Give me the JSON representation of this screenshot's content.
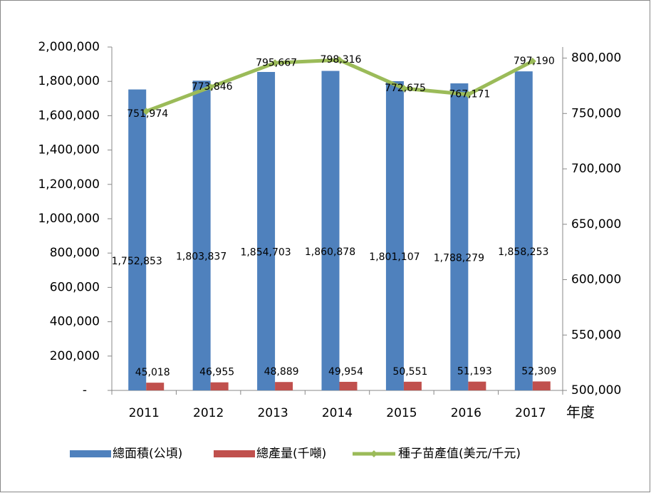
{
  "chart_data": {
    "type": "bar",
    "x_label": "年度",
    "categories": [
      "2011",
      "2012",
      "2013",
      "2014",
      "2015",
      "2016",
      "2017"
    ],
    "series": [
      {
        "name": "總面積(公頃)",
        "type": "bar",
        "color": "#4f81bd",
        "values": [
          1752853,
          1803837,
          1854703,
          1860878,
          1801107,
          1788279,
          1858253
        ],
        "value_labels": [
          "1,752,853",
          "1,803,837",
          "1,854,703",
          "1,860,878",
          "1,801,107",
          "1,788,279",
          "1,858,253"
        ]
      },
      {
        "name": "總產量(千噸)",
        "type": "bar",
        "color": "#c0504d",
        "values": [
          45018,
          46955,
          48889,
          49954,
          50551,
          51193,
          52309
        ],
        "value_labels": [
          "45,018",
          "46,955",
          "48,889",
          "49,954",
          "50,551",
          "51,193",
          "52,309"
        ]
      },
      {
        "name": "種子苗產值(美元/千元)",
        "type": "line",
        "axis": "y2",
        "color": "#9bbb59",
        "values": [
          751974,
          773846,
          795667,
          798316,
          772675,
          767171,
          797190
        ],
        "value_labels": [
          "751,974",
          "773,846",
          "795,667",
          "798,316",
          "772,675",
          "767,171",
          "797,190"
        ]
      }
    ],
    "ylim": [
      0,
      2000000
    ],
    "yticks": [
      {
        "value": 0,
        "label": "-"
      },
      {
        "value": 200000,
        "label": "200,000"
      },
      {
        "value": 400000,
        "label": "400,000"
      },
      {
        "value": 600000,
        "label": "600,000"
      },
      {
        "value": 800000,
        "label": "800,000"
      },
      {
        "value": 1000000,
        "label": "1,000,000"
      },
      {
        "value": 1200000,
        "label": "1,200,000"
      },
      {
        "value": 1400000,
        "label": "1,400,000"
      },
      {
        "value": 1600000,
        "label": "1,600,000"
      },
      {
        "value": 1800000,
        "label": "1,800,000"
      },
      {
        "value": 2000000,
        "label": "2,000,000"
      }
    ],
    "y2lim": [
      500000,
      810000
    ],
    "y2ticks": [
      {
        "value": 500000,
        "label": "500,000"
      },
      {
        "value": 550000,
        "label": "550,000"
      },
      {
        "value": 600000,
        "label": "600,000"
      },
      {
        "value": 650000,
        "label": "650,000"
      },
      {
        "value": 700000,
        "label": "700,000"
      },
      {
        "value": 750000,
        "label": "750,000"
      },
      {
        "value": 800000,
        "label": "800,000"
      }
    ],
    "legend": "bottom"
  }
}
